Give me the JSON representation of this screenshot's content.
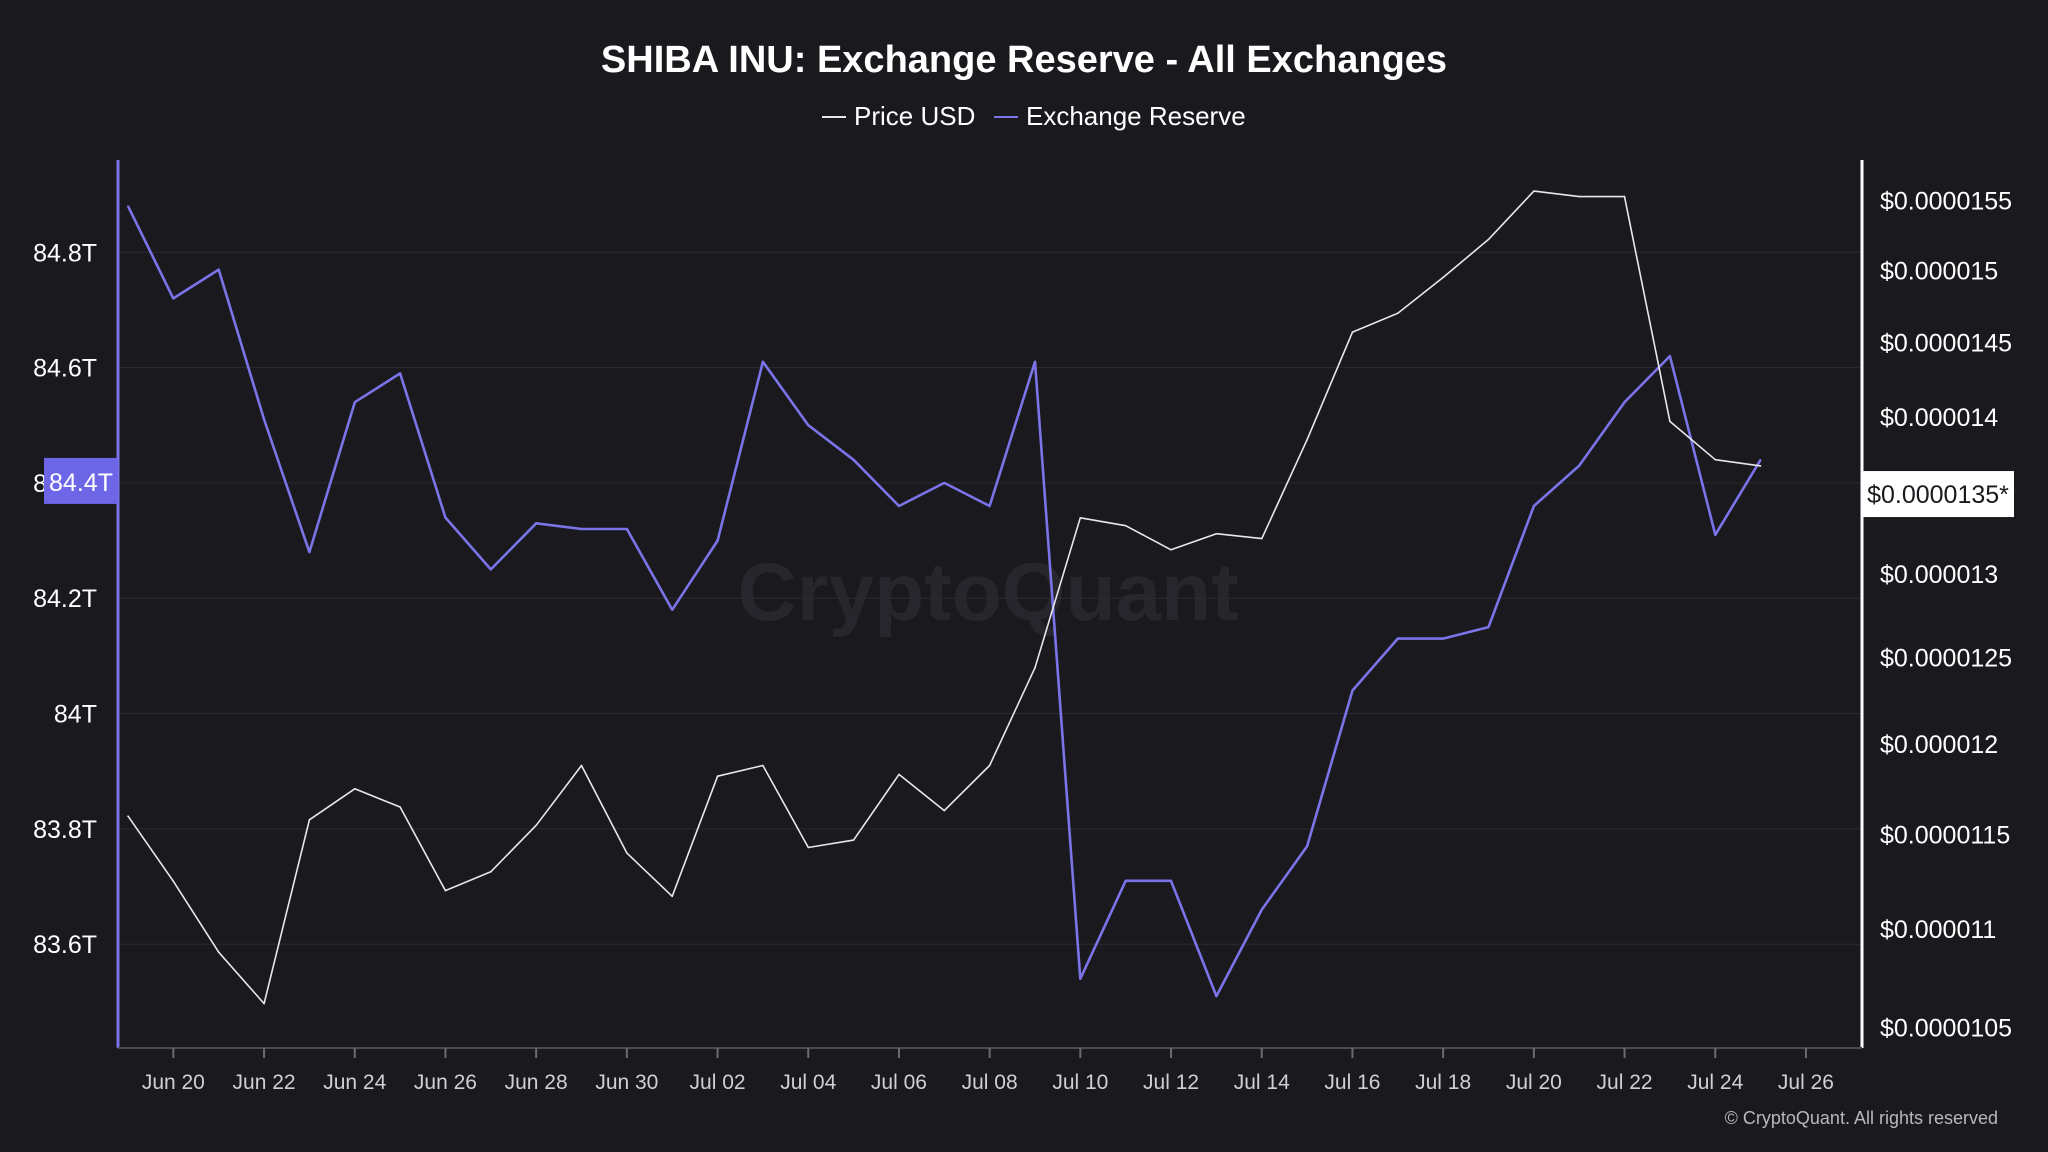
{
  "chart_data": {
    "type": "line",
    "title": "SHIBA INU: Exchange Reserve - All Exchanges",
    "legend": [
      {
        "name": "Price USD",
        "color": "#e8e8ec"
      },
      {
        "name": "Exchange Reserve",
        "color": "#7b74e8"
      }
    ],
    "x": [
      "Jun 19",
      "Jun 20",
      "Jun 21",
      "Jun 22",
      "Jun 23",
      "Jun 24",
      "Jun 25",
      "Jun 26",
      "Jun 27",
      "Jun 28",
      "Jun 29",
      "Jun 30",
      "Jul 01",
      "Jul 02",
      "Jul 03",
      "Jul 04",
      "Jul 05",
      "Jul 06",
      "Jul 07",
      "Jul 08",
      "Jul 09",
      "Jul 10",
      "Jul 11",
      "Jul 12",
      "Jul 13",
      "Jul 14",
      "Jul 15",
      "Jul 16",
      "Jul 17",
      "Jul 18",
      "Jul 19",
      "Jul 20",
      "Jul 21",
      "Jul 22",
      "Jul 23",
      "Jul 24",
      "Jul 25"
    ],
    "x_ticks": [
      "Jun 20",
      "Jun 22",
      "Jun 24",
      "Jun 26",
      "Jun 28",
      "Jun 30",
      "Jul 02",
      "Jul 04",
      "Jul 06",
      "Jul 08",
      "Jul 10",
      "Jul 12",
      "Jul 14",
      "Jul 16",
      "Jul 18",
      "Jul 20",
      "Jul 22",
      "Jul 24",
      "Jul 26"
    ],
    "left_axis": {
      "ticks": [
        {
          "value": 83.6,
          "label": "83.6T"
        },
        {
          "value": 83.8,
          "label": "83.8T"
        },
        {
          "value": 84.0,
          "label": "84T"
        },
        {
          "value": 84.2,
          "label": "84.2T"
        },
        {
          "value": 84.4,
          "label": "84.4T"
        },
        {
          "value": 84.6,
          "label": "84.6T"
        },
        {
          "value": 84.8,
          "label": "84.8T"
        }
      ],
      "range": [
        83.42,
        84.96
      ],
      "unit": "T"
    },
    "right_axis": {
      "ticks": [
        {
          "value": 1.05e-05,
          "label": "$0.0000105"
        },
        {
          "value": 1.1e-05,
          "label": "$0.000011"
        },
        {
          "value": 1.15e-05,
          "label": "$0.0000115"
        },
        {
          "value": 1.2e-05,
          "label": "$0.000012"
        },
        {
          "value": 1.25e-05,
          "label": "$0.0000125"
        },
        {
          "value": 1.3e-05,
          "label": "$0.000013"
        },
        {
          "value": 1.35e-05,
          "label": "$0.0000135*"
        },
        {
          "value": 1.4e-05,
          "label": "$0.000014"
        },
        {
          "value": 1.45e-05,
          "label": "$0.0000145"
        },
        {
          "value": 1.5e-05,
          "label": "$0.000015"
        },
        {
          "value": 1.55e-05,
          "label": "$0.0000155"
        }
      ],
      "scale": "log",
      "range": [
        1.04e-05,
        1.58e-05
      ]
    },
    "series": [
      {
        "name": "Exchange Reserve",
        "axis": "left",
        "values": [
          84.88,
          84.72,
          84.77,
          84.51,
          84.28,
          84.54,
          84.59,
          84.34,
          84.25,
          84.33,
          84.32,
          84.32,
          84.18,
          84.3,
          84.61,
          84.5,
          84.44,
          84.36,
          84.4,
          84.36,
          84.61,
          83.54,
          83.71,
          83.71,
          83.51,
          83.66,
          83.77,
          84.04,
          84.13,
          84.13,
          84.15,
          84.36,
          84.43,
          84.54,
          84.62,
          84.31,
          84.44
        ]
      },
      {
        "name": "Price USD",
        "axis": "right",
        "values": [
          1.16e-05,
          1.125e-05,
          1.088e-05,
          1.062e-05,
          1.158e-05,
          1.175e-05,
          1.165e-05,
          1.12e-05,
          1.13e-05,
          1.155e-05,
          1.188e-05,
          1.14e-05,
          1.117e-05,
          1.182e-05,
          1.188e-05,
          1.143e-05,
          1.147e-05,
          1.183e-05,
          1.163e-05,
          1.188e-05,
          1.244e-05,
          1.335e-05,
          1.33e-05,
          1.315e-05,
          1.325e-05,
          1.322e-05,
          1.385e-05,
          1.457e-05,
          1.47e-05,
          1.495e-05,
          1.522e-05,
          1.557e-05,
          1.553e-05,
          1.553e-05,
          1.397e-05,
          1.372e-05,
          1.368e-05
        ]
      }
    ],
    "crosshair": {
      "left_label": "84.4T",
      "right_label": "$0.0000135*"
    },
    "grid": true,
    "legend_position": "top-center"
  },
  "watermark": "CryptoQuant",
  "copyright": "© CryptoQuant. All rights reserved",
  "colors": {
    "background": "#19191e",
    "reserve": "#7b74e8",
    "price": "#e8e8ec",
    "left_axis": "#7b74e8",
    "right_axis": "#ffffff"
  }
}
